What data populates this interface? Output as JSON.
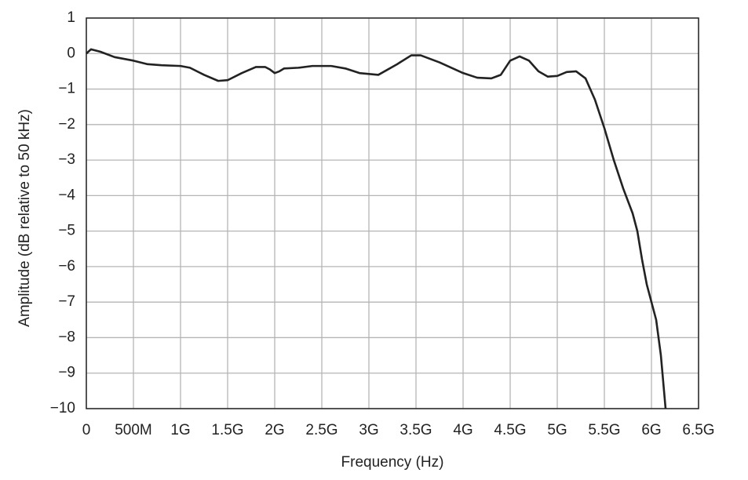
{
  "chart_data": {
    "type": "line",
    "x_label": "Frequency (Hz)",
    "y_label": "Amplitude (dB relative to 50 kHz)",
    "xlim": [
      0,
      6500000000
    ],
    "ylim": [
      -10,
      1
    ],
    "xticks": [
      0,
      {
        "value": 500000000,
        "label": "500M"
      },
      {
        "value": 1000000000,
        "label": "1G"
      },
      {
        "value": 1500000000,
        "label": "1.5G"
      },
      {
        "value": 2000000000,
        "label": "2G"
      },
      {
        "value": 2500000000,
        "label": "2.5G"
      },
      {
        "value": 3000000000,
        "label": "3G"
      },
      {
        "value": 3500000000,
        "label": "3.5G"
      },
      {
        "value": 4000000000,
        "label": "4G"
      },
      {
        "value": 4500000000,
        "label": "4.5G"
      },
      {
        "value": 5000000000,
        "label": "5G"
      },
      {
        "value": 5500000000,
        "label": "5.5G"
      },
      {
        "value": 6000000000,
        "label": "6G"
      },
      {
        "value": 6500000000,
        "label": "6.5G"
      }
    ],
    "yticks": [
      1,
      0,
      {
        "value": -1,
        "label": "−1"
      },
      {
        "value": -2,
        "label": "−2"
      },
      {
        "value": -3,
        "label": "−3"
      },
      {
        "value": -4,
        "label": "−4"
      },
      {
        "value": -5,
        "label": "−5"
      },
      {
        "value": -6,
        "label": "−6"
      },
      {
        "value": -7,
        "label": "−7"
      },
      {
        "value": -8,
        "label": "−8"
      },
      {
        "value": -9,
        "label": "−9"
      },
      {
        "value": -10,
        "label": "−10"
      }
    ],
    "grid": true,
    "x": [
      0,
      50000000,
      150000000,
      300000000,
      500000000,
      650000000,
      800000000,
      1000000000,
      1100000000,
      1250000000,
      1400000000,
      1500000000,
      1650000000,
      1800000000,
      1900000000,
      1950000000,
      2000000000,
      2050000000,
      2100000000,
      2250000000,
      2400000000,
      2600000000,
      2750000000,
      2900000000,
      3100000000,
      3300000000,
      3450000000,
      3550000000,
      3750000000,
      4000000000,
      4150000000,
      4300000000,
      4400000000,
      4500000000,
      4600000000,
      4700000000,
      4800000000,
      4900000000,
      5000000000,
      5100000000,
      5200000000,
      5300000000,
      5400000000,
      5500000000,
      5600000000,
      5700000000,
      5800000000,
      5850000000,
      5900000000,
      5950000000,
      6000000000,
      6050000000,
      6100000000,
      6150000000
    ],
    "series": [
      {
        "color": "#222222",
        "values": [
          0,
          0.12,
          0.05,
          -0.1,
          -0.2,
          -0.3,
          -0.33,
          -0.35,
          -0.4,
          -0.6,
          -0.77,
          -0.75,
          -0.55,
          -0.38,
          -0.38,
          -0.45,
          -0.55,
          -0.5,
          -0.42,
          -0.4,
          -0.35,
          -0.35,
          -0.42,
          -0.55,
          -0.6,
          -0.3,
          -0.05,
          -0.05,
          -0.25,
          -0.55,
          -0.68,
          -0.7,
          -0.6,
          -0.2,
          -0.08,
          -0.2,
          -0.5,
          -0.65,
          -0.63,
          -0.52,
          -0.5,
          -0.7,
          -1.3,
          -2.1,
          -3.0,
          -3.8,
          -4.5,
          -5.0,
          -5.8,
          -6.5,
          -7.0,
          -7.5,
          -8.5,
          -10
        ]
      }
    ]
  }
}
